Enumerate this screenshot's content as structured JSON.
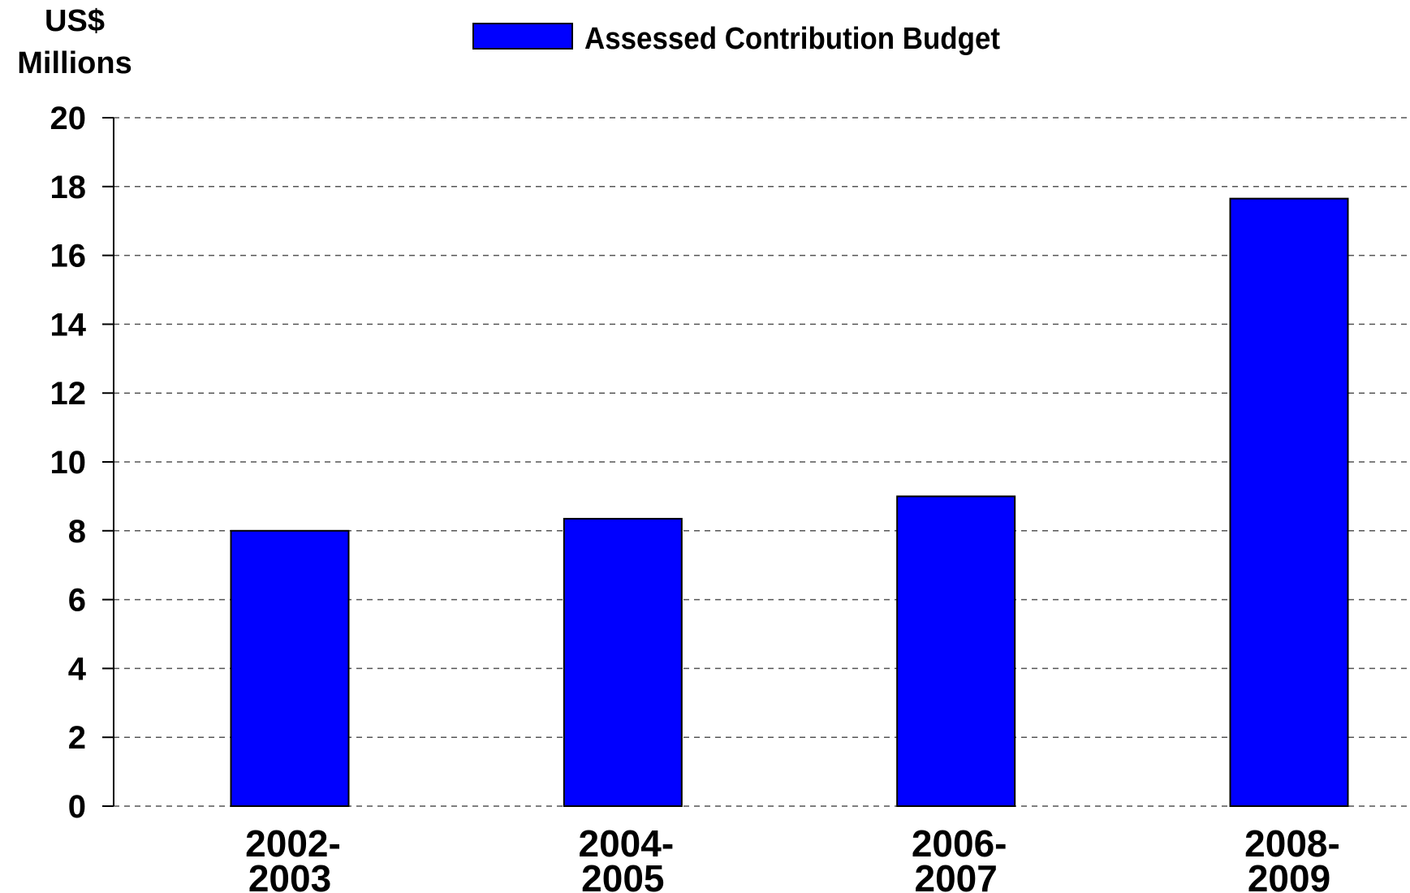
{
  "chart_data": {
    "type": "bar",
    "ylabel_lines": [
      "US$",
      "Millions"
    ],
    "xlabel": "",
    "categories": [
      [
        "2002-",
        "2003"
      ],
      [
        "2004-",
        "2005"
      ],
      [
        "2006-",
        "2007"
      ],
      [
        "2008-",
        "2009"
      ]
    ],
    "series": [
      {
        "name": "Assessed Contribution Budget",
        "color": "#0000ff",
        "values": [
          8.0,
          8.35,
          9.0,
          17.65
        ]
      }
    ],
    "ylim": [
      0,
      20
    ],
    "yticks": [
      "0",
      "2",
      "4",
      "6",
      "8",
      "10",
      "12",
      "14",
      "16",
      "18",
      "20"
    ],
    "grid": true,
    "grid_style": "dashed",
    "legend_position": "top-center"
  }
}
